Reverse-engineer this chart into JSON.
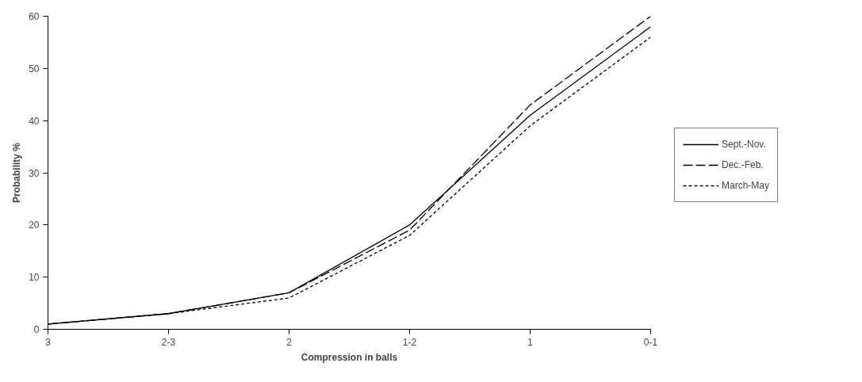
{
  "chart_data": {
    "type": "line",
    "xlabel": "Compression in balls",
    "ylabel": "Probability %",
    "categories": [
      "3",
      "2-3",
      "2",
      "1-2",
      "1",
      "0-1"
    ],
    "series": [
      {
        "name": "Sept.-Nov.",
        "color": "#000000",
        "line_style": "solid",
        "values": [
          1,
          3,
          7,
          20,
          41,
          58
        ]
      },
      {
        "name": "Dec.-Feb.",
        "color": "#000000",
        "line_style": "dashed",
        "values": [
          1,
          3,
          7,
          19,
          43,
          60
        ]
      },
      {
        "name": "March-May",
        "color": "#000000",
        "line_style": "dotted",
        "values": [
          1,
          3,
          6,
          18,
          39,
          56
        ]
      }
    ],
    "ylim": [
      0,
      60
    ],
    "yticks": [
      0,
      10,
      20,
      30,
      40,
      50,
      60
    ],
    "grid": false,
    "legend": "right",
    "marker": "none"
  }
}
